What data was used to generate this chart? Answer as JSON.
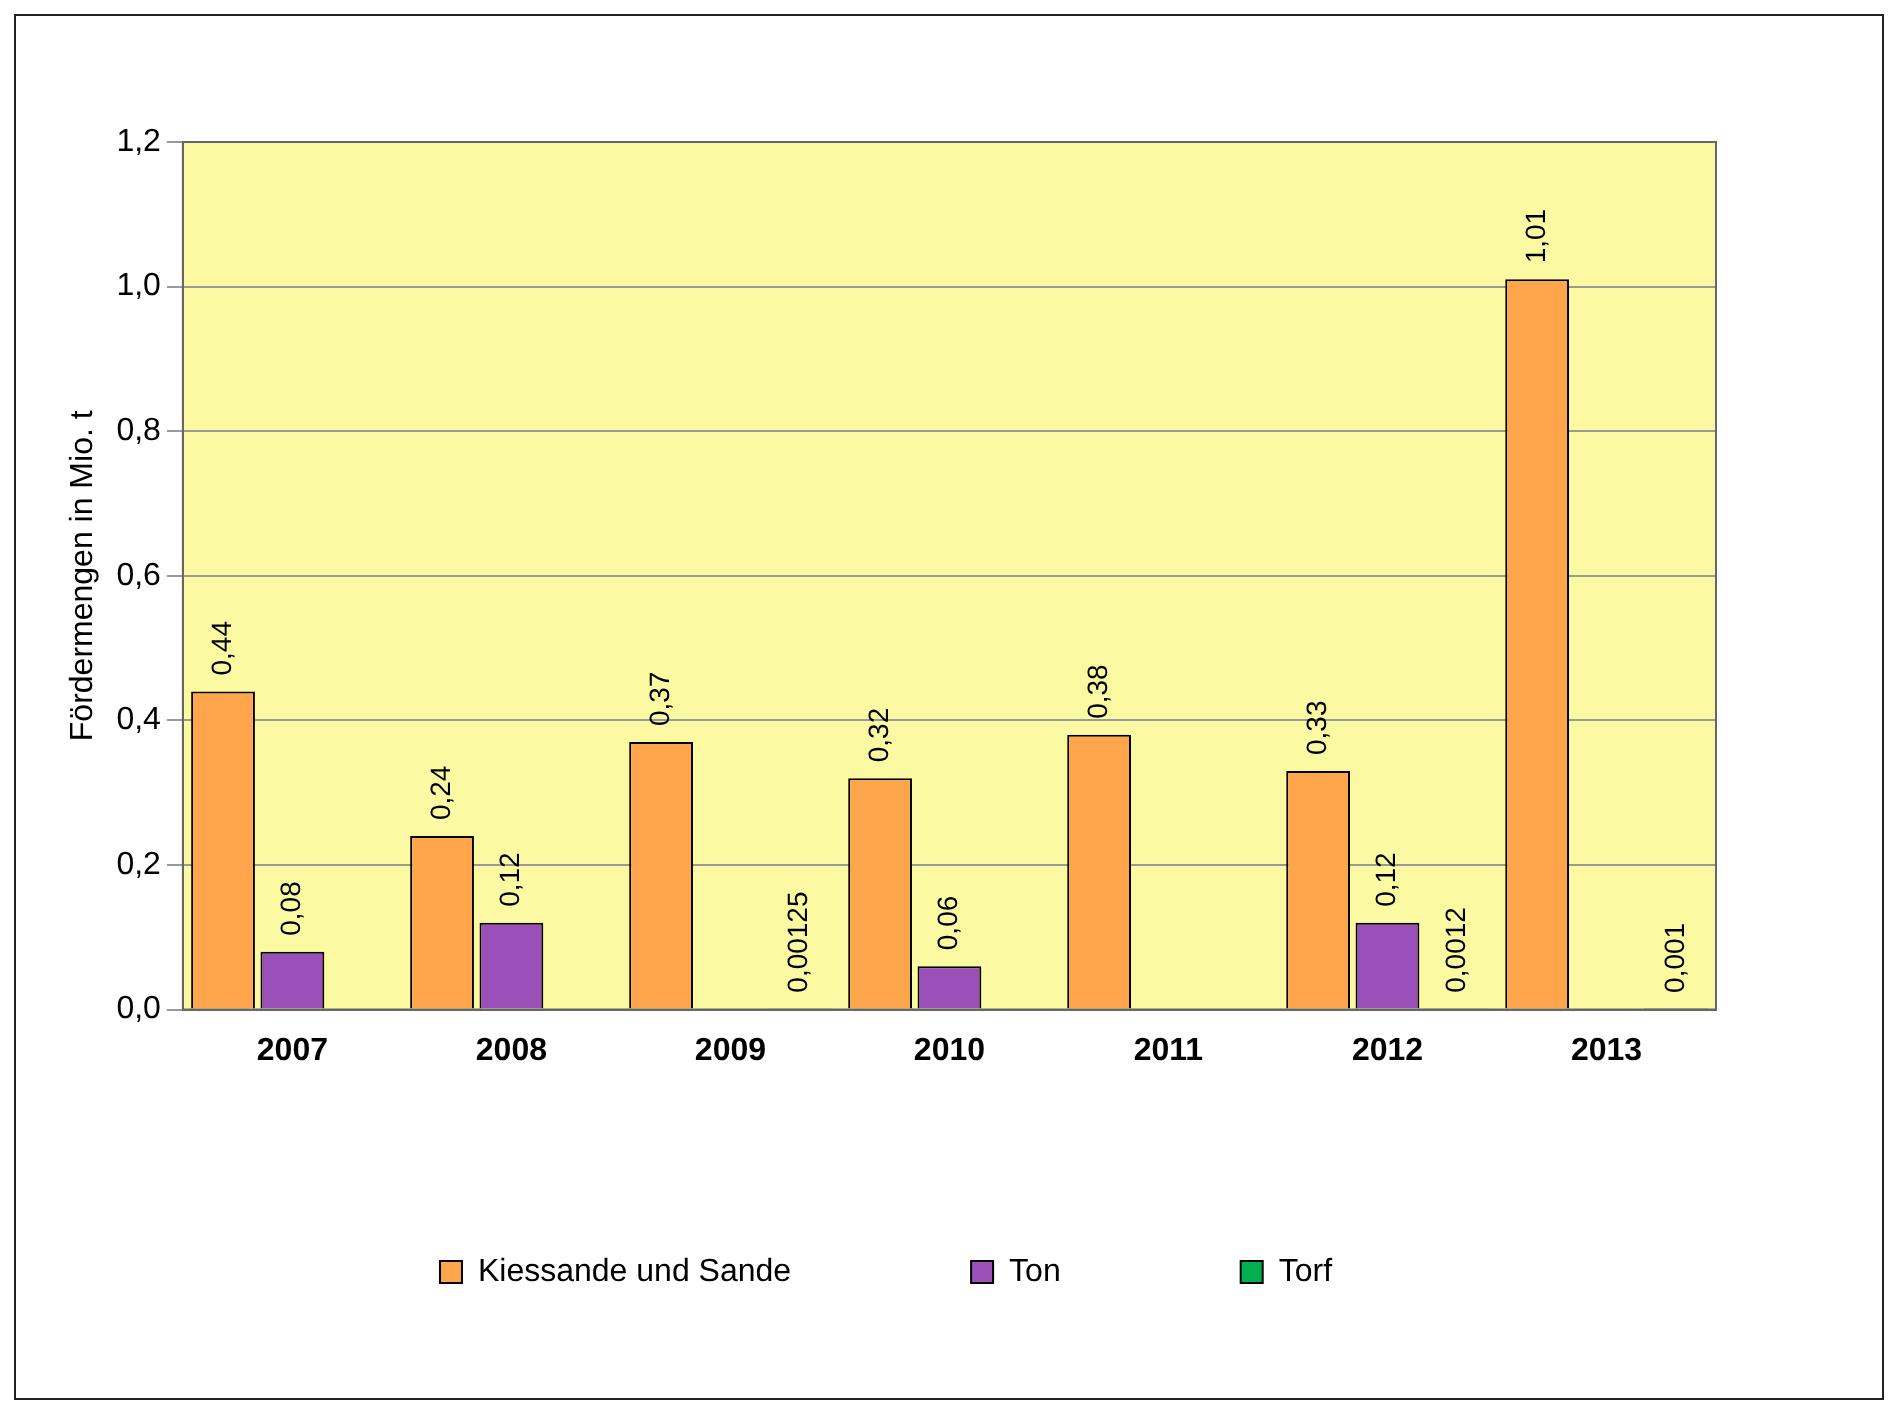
{
  "chart_data": {
    "type": "bar",
    "ylabel": "Fördermengen in Mio. t",
    "categories": [
      "2007",
      "2008",
      "2009",
      "2010",
      "2011",
      "2012",
      "2013"
    ],
    "series": [
      {
        "name": "Kiessande und Sande",
        "color": "#ffa64d",
        "values": [
          0.44,
          0.24,
          0.37,
          0.32,
          0.38,
          0.33,
          1.01
        ],
        "value_labels": [
          "0,44",
          "0,24",
          "0,37",
          "0,32",
          "0,38",
          "0,33",
          "1,01"
        ]
      },
      {
        "name": "Ton",
        "color": "#9b4fb8",
        "values": [
          0.08,
          0.12,
          null,
          0.06,
          null,
          0.12,
          null
        ],
        "value_labels": [
          "0,08",
          "0,12",
          null,
          "0,06",
          null,
          "0,12",
          null
        ]
      },
      {
        "name": "Torf",
        "color": "#00b050",
        "values": [
          null,
          null,
          0.00125,
          null,
          null,
          0.0012,
          0.001
        ],
        "value_labels": [
          null,
          null,
          "0,00125",
          null,
          null,
          "0,0012",
          "0,001"
        ]
      }
    ],
    "ylim": [
      0,
      1.2
    ],
    "yticks": [
      {
        "value": 0,
        "label": "0,0"
      },
      {
        "value": 0.2,
        "label": "0,2"
      },
      {
        "value": 0.4,
        "label": "0,4"
      },
      {
        "value": 0.6,
        "label": "0,6"
      },
      {
        "value": 0.8,
        "label": "0,8"
      },
      {
        "value": 1,
        "label": "1,0"
      },
      {
        "value": 1.2,
        "label": "1,2"
      }
    ],
    "grid": "y",
    "legend": "bottom"
  }
}
